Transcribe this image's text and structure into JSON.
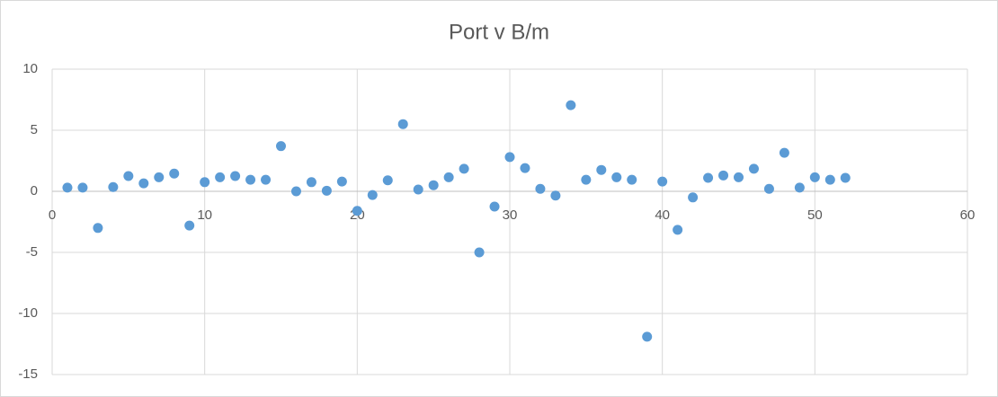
{
  "chart_data": {
    "type": "scatter",
    "title": "Port v B/m",
    "x": [
      1,
      2,
      3,
      4,
      5,
      6,
      7,
      8,
      9,
      10,
      11,
      12,
      13,
      14,
      15,
      16,
      17,
      18,
      19,
      20,
      21,
      22,
      23,
      24,
      25,
      26,
      27,
      28,
      29,
      30,
      31,
      32,
      33,
      34,
      35,
      36,
      37,
      38,
      39,
      40,
      41,
      42,
      43,
      44,
      45,
      46,
      47,
      48,
      49,
      50,
      51,
      52
    ],
    "series": [
      {
        "color": "#5b9bd5",
        "values": [
          0.3,
          0.3,
          -3.0,
          0.35,
          1.25,
          0.65,
          1.15,
          1.45,
          -2.8,
          0.75,
          1.15,
          1.25,
          0.95,
          0.95,
          3.7,
          0.0,
          0.75,
          0.05,
          0.8,
          -1.6,
          -0.3,
          0.9,
          5.5,
          0.15,
          0.5,
          1.15,
          1.85,
          -5.0,
          -1.25,
          2.8,
          1.9,
          0.2,
          -0.35,
          7.05,
          0.95,
          1.75,
          1.15,
          0.95,
          -11.9,
          0.8,
          -3.15,
          -0.5,
          1.1,
          1.3,
          1.15,
          1.85,
          0.2,
          3.15,
          0.3,
          1.15,
          0.95,
          1.1
        ]
      }
    ],
    "xlim": [
      0,
      60
    ],
    "xticks": [
      0,
      10,
      20,
      30,
      40,
      50,
      60
    ],
    "ylim": [
      -15,
      10
    ],
    "yticks": [
      10,
      5,
      0,
      -5,
      -10,
      -15
    ],
    "grid": true
  }
}
